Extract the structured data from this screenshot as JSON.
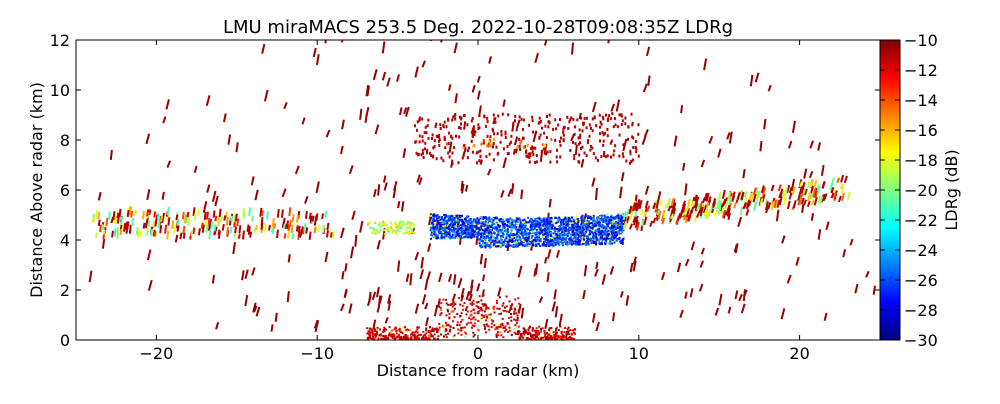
{
  "chart_data": {
    "type": "heatmap",
    "title": "LMU miraMACS 253.5 Deg. 2022-10-28T09:08:35Z  LDRg",
    "xlabel": "Distance from radar (km)",
    "ylabel": "Distance Above radar  (km)",
    "xlim": [
      -25,
      25
    ],
    "ylim": [
      0,
      12
    ],
    "xticks": [
      -20,
      -10,
      0,
      10,
      20
    ],
    "xtick_labels": [
      "−20",
      "−10",
      "0",
      "10",
      "20"
    ],
    "yticks": [
      0,
      2,
      4,
      6,
      8,
      10,
      12
    ],
    "ytick_labels": [
      "0",
      "2",
      "4",
      "6",
      "8",
      "10",
      "12"
    ],
    "colorbar": {
      "label": "LDRg (dB)",
      "range": [
        -30,
        -10
      ],
      "ticks": [
        -10,
        -12,
        -14,
        -16,
        -18,
        -20,
        -22,
        -24,
        -26,
        -28,
        -30
      ],
      "tick_labels": [
        "−10",
        "−12",
        "−14",
        "−16",
        "−18",
        "−20",
        "−22",
        "−24",
        "−26",
        "−28",
        "−30"
      ],
      "colormap": "jet",
      "colors": [
        "#00007f",
        "#0000ff",
        "#007fff",
        "#00ffff",
        "#7fff7f",
        "#ffff00",
        "#ff7f00",
        "#ff0000",
        "#7f0000"
      ]
    },
    "features": [
      {
        "name": "near-surface clutter",
        "x_range": [
          -7,
          6
        ],
        "height_range": [
          0,
          0.5
        ],
        "ldr_db": -10
      },
      {
        "name": "melting-layer band",
        "x_range": [
          -3,
          9
        ],
        "height_range": [
          3.3,
          5.0
        ],
        "ldr_db": -28
      },
      {
        "name": "ice cloud layer (right)",
        "x_range": [
          9,
          23
        ],
        "height_range": [
          4.0,
          6.2
        ],
        "ldr_db": -17
      },
      {
        "name": "ice cloud layer (left)",
        "x_range": [
          -24,
          -9
        ],
        "height_range": [
          4.0,
          5.0
        ],
        "ldr_db": -17
      },
      {
        "name": "upper echoes",
        "x_range": [
          -4,
          10
        ],
        "height_range": [
          7,
          9
        ],
        "ldr_db": -11
      }
    ]
  }
}
